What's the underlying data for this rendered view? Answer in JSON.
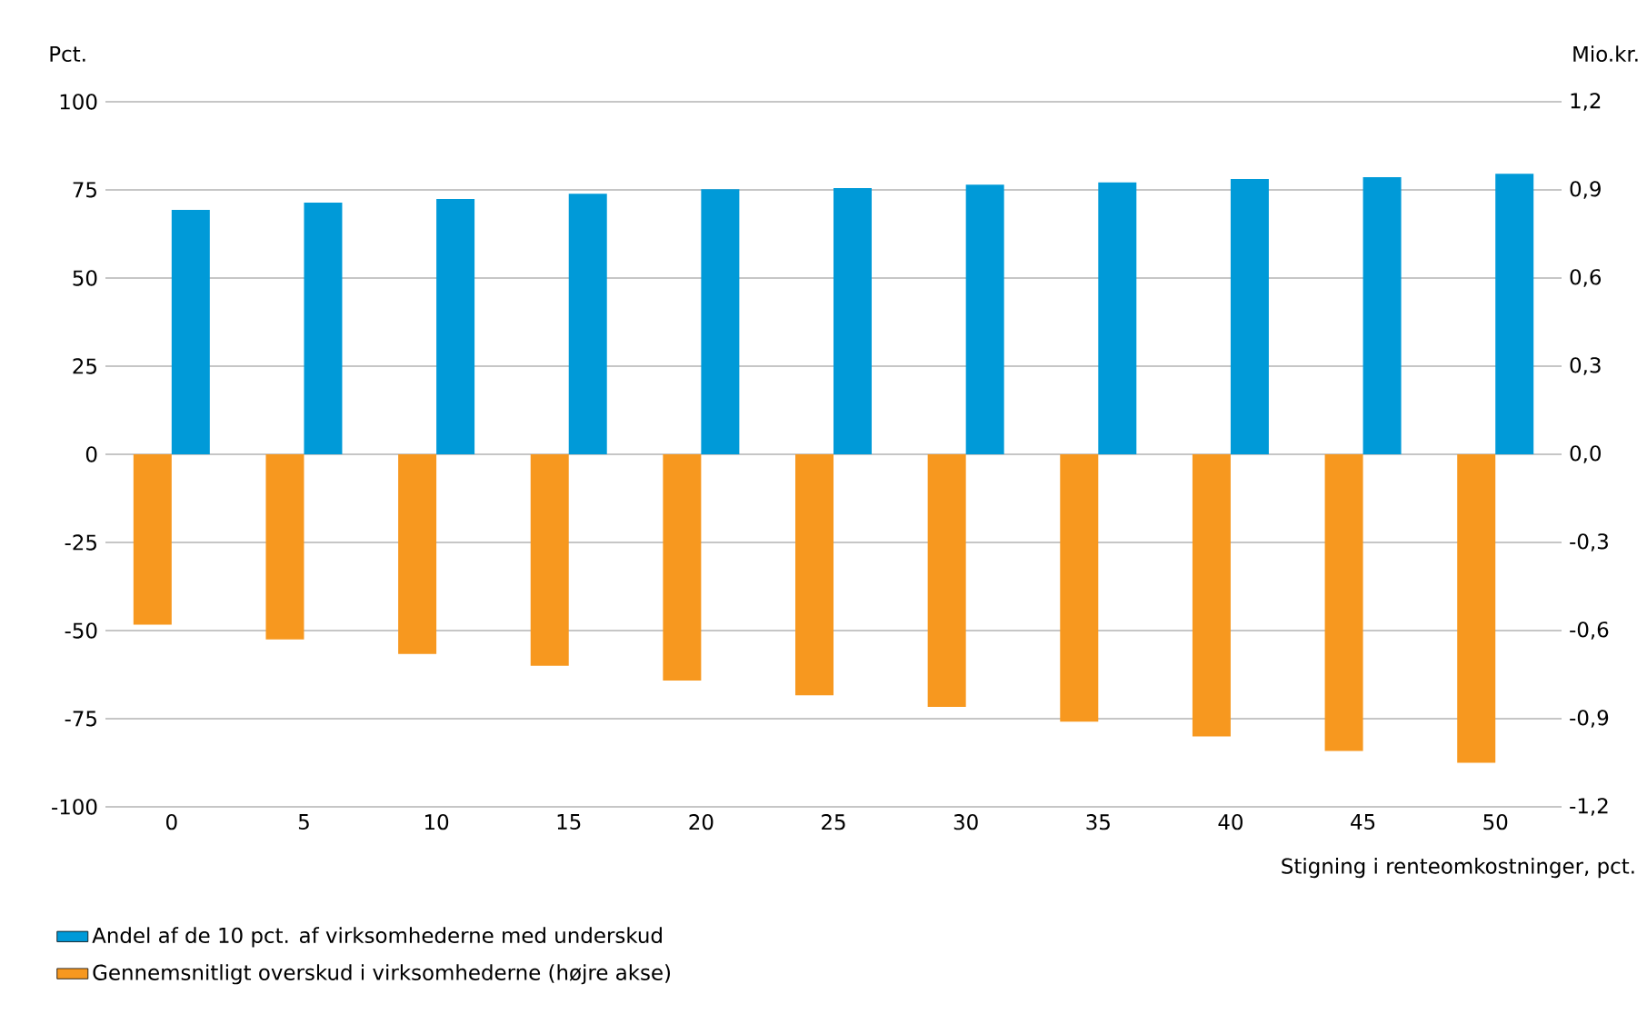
{
  "chart_data": {
    "type": "bar",
    "categories": [
      "0",
      "5",
      "10",
      "15",
      "20",
      "25",
      "30",
      "35",
      "40",
      "45",
      "50"
    ],
    "xlabel": "Stigning i renteomkostninger, pct.",
    "ylabel": "Pct.",
    "y2label": "Mio.kr.",
    "ylim": [
      -100,
      100
    ],
    "yticks": [
      -100,
      -75,
      -50,
      -25,
      0,
      25,
      50,
      75,
      100
    ],
    "y2lim": [
      -1.2,
      1.2
    ],
    "y2ticks": [
      {
        "value": -1.2,
        "label": "-1,2"
      },
      {
        "value": -0.9,
        "label": "-0,9"
      },
      {
        "value": -0.6,
        "label": "-0,6"
      },
      {
        "value": -0.3,
        "label": "-0,3"
      },
      {
        "value": 0,
        "label": "0,0"
      },
      {
        "value": 0.3,
        "label": "0,3"
      },
      {
        "value": 0.6,
        "label": "0,6"
      },
      {
        "value": 0.9,
        "label": "0,9"
      },
      {
        "value": 1.2,
        "label": "1,2"
      }
    ],
    "grid": "y",
    "legend": "bottom left",
    "series": [
      {
        "name": "Andel af de 10 pct. af virksomhederne med underskud",
        "color": "#009ad8",
        "values": [
          69.3,
          71.4,
          72.4,
          73.9,
          75.2,
          75.5,
          76.5,
          77.1,
          78.1,
          78.6,
          79.6
        ]
      },
      {
        "name": "Gennemsnitligt overskud i virksomhederne (højre akse)",
        "color": "#f7981f",
        "axis": "y2",
        "values": [
          -0.58,
          -0.63,
          -0.68,
          -0.72,
          -0.77,
          -0.82,
          -0.86,
          -0.91,
          -0.96,
          -1.01,
          -1.05
        ]
      }
    ]
  }
}
